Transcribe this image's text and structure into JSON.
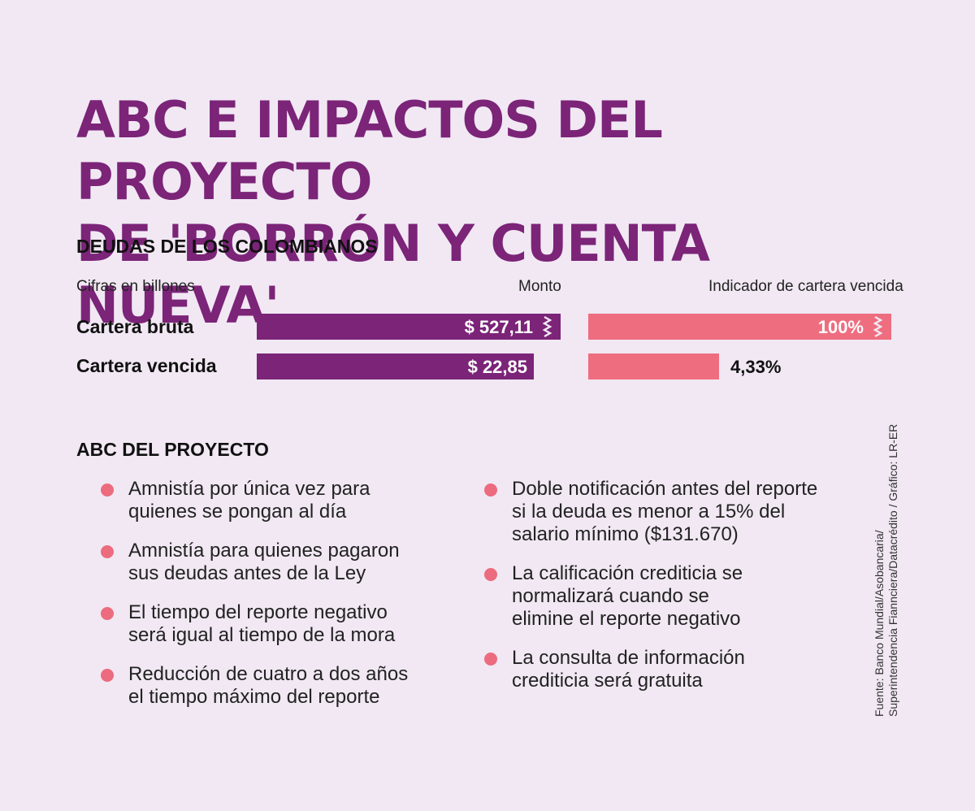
{
  "title_line1": "ABC E IMPACTOS DEL PROYECTO",
  "title_line2": "DE 'BORRÓN Y CUENTA NUEVA'",
  "section_debts": "DEUDAS DE LOS COLOMBIANOS",
  "units_note": "Cifras en billones",
  "col_amount": "Monto",
  "col_indicator": "Indicador de cartera vencida",
  "colors": {
    "purple": "#7b2478",
    "pink": "#ee6d7f",
    "dot": "#ec6b7e"
  },
  "chart_data": {
    "type": "bar",
    "categories": [
      "Cartera bruta",
      "Cartera vencida"
    ],
    "series": [
      {
        "name": "Monto",
        "values": [
          527.11,
          22.85
        ],
        "labels": [
          "$ 527,11",
          "$ 22,85"
        ],
        "broken": [
          true,
          false
        ]
      },
      {
        "name": "Indicador de cartera vencida",
        "values": [
          100,
          4.33
        ],
        "labels": [
          "100%",
          "4,33%"
        ],
        "broken": [
          true,
          false
        ]
      }
    ]
  },
  "section_abc": "ABC DEL PROYECTO",
  "abc_left": [
    [
      "Amnistía por única vez para",
      "quienes se pongan al día"
    ],
    [
      "Amnistía para quienes pagaron",
      "sus deudas antes de la Ley"
    ],
    [
      "El tiempo del reporte negativo",
      "será igual al tiempo de la mora"
    ],
    [
      "Reducción de cuatro a dos años",
      "el tiempo máximo del reporte"
    ]
  ],
  "abc_right": [
    [
      "Doble notificación antes del reporte",
      "si la deuda es menor a 15% del",
      "salario mínimo ($131.670)"
    ],
    [
      "La calificación crediticia se",
      "normalizará  cuando se",
      "elimine el reporte negativo"
    ],
    [
      "La consulta de información",
      "crediticia será gratuita"
    ]
  ],
  "source_line1": "Fuente: Banco Mundial/Asobancaria/",
  "source_line2": "Superintendencia Fiannciera/Datacrédito / Gráfico: LR-ER"
}
